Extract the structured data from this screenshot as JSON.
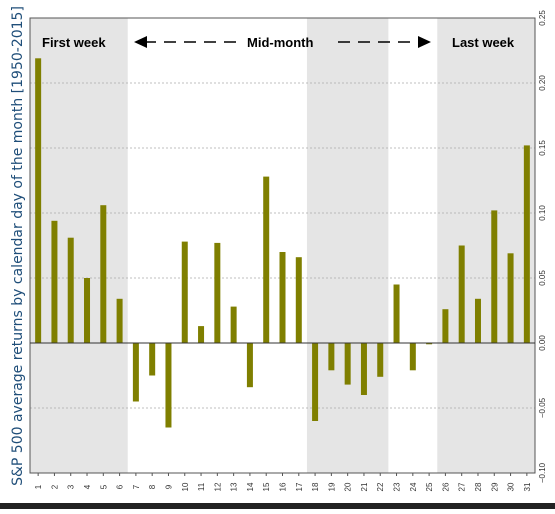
{
  "chart_data": {
    "type": "bar",
    "ylabel": "S&P 500 average returns by calendar day of the month [1950-2015]",
    "ylim": [
      -0.1,
      0.25
    ],
    "yticks": [
      "−0.10",
      "−0.05",
      "0.00",
      "0.05",
      "0.10",
      "0.15",
      "0.20",
      "0.25"
    ],
    "y_axis_position": "right",
    "grid": true,
    "bar_color": "#7f7f00",
    "band_color": "#e5e5e5",
    "categories": [
      "1",
      "2",
      "3",
      "4",
      "5",
      "6",
      "7",
      "8",
      "9",
      "10",
      "11",
      "12",
      "13",
      "14",
      "15",
      "16",
      "17",
      "18",
      "19",
      "20",
      "21",
      "22",
      "23",
      "24",
      "25",
      "26",
      "27",
      "28",
      "29",
      "30",
      "31"
    ],
    "values": [
      0.219,
      0.094,
      0.081,
      0.05,
      0.106,
      0.034,
      -0.045,
      -0.025,
      -0.065,
      0.078,
      0.013,
      0.077,
      0.028,
      -0.034,
      0.128,
      0.07,
      0.066,
      -0.06,
      -0.021,
      -0.032,
      -0.04,
      -0.026,
      0.045,
      -0.021,
      -0.001,
      0.026,
      0.075,
      0.034,
      0.102,
      0.069,
      0.152
    ],
    "shaded_ranges": [
      [
        1,
        6
      ],
      [
        18,
        22
      ],
      [
        26,
        31
      ]
    ],
    "annotations": {
      "first_week": "First week",
      "mid_month": "Mid-month",
      "last_week": "Last week"
    }
  }
}
